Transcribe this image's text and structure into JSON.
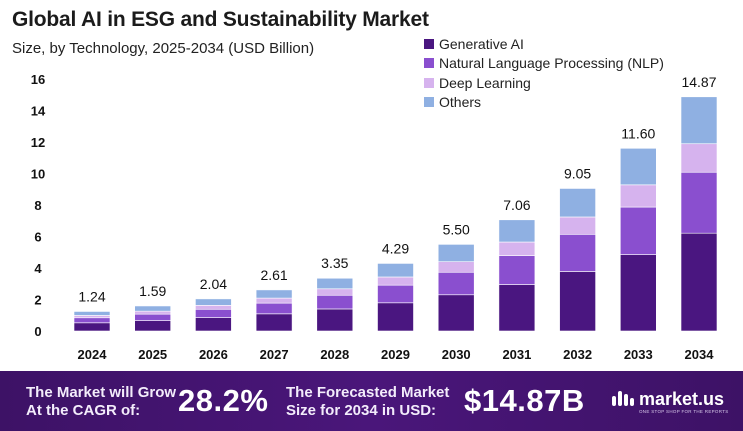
{
  "title": "Global AI in ESG and Sustainability Market",
  "subtitle": "Size, by Technology, 2025-2034 (USD Billion)",
  "colors": {
    "generative_ai": "#4a1680",
    "nlp": "#8a4fcf",
    "deep_learning": "#d6b3ee",
    "others": "#8fb0e2"
  },
  "legend": [
    {
      "label": "Generative AI",
      "color": "#4a1680"
    },
    {
      "label": "Natural Language Processing (NLP)",
      "color": "#8a4fcf"
    },
    {
      "label": "Deep Learning",
      "color": "#d6b3ee"
    },
    {
      "label": "Others",
      "color": "#8fb0e2"
    }
  ],
  "chart_data": {
    "type": "bar",
    "stacked": true,
    "categories": [
      "2024",
      "2025",
      "2026",
      "2027",
      "2028",
      "2029",
      "2030",
      "2031",
      "2032",
      "2033",
      "2034"
    ],
    "totals": [
      1.24,
      1.59,
      2.04,
      2.61,
      3.35,
      4.29,
      5.5,
      7.06,
      9.05,
      11.6,
      14.87
    ],
    "total_labels": [
      "1.24",
      "1.59",
      "2.04",
      "2.61",
      "3.35",
      "4.29",
      "5.50",
      "7.06",
      "9.05",
      "11.60",
      "14.87"
    ],
    "series": [
      {
        "name": "Generative AI",
        "color": "#4a1680",
        "values": [
          0.52,
          0.66,
          0.85,
          1.09,
          1.4,
          1.79,
          2.3,
          2.95,
          3.78,
          4.85,
          6.21
        ]
      },
      {
        "name": "Natural Language Processing (NLP)",
        "color": "#8a4fcf",
        "values": [
          0.32,
          0.41,
          0.53,
          0.68,
          0.87,
          1.12,
          1.43,
          1.84,
          2.36,
          3.02,
          3.87
        ]
      },
      {
        "name": "Deep Learning",
        "color": "#d6b3ee",
        "values": [
          0.15,
          0.19,
          0.25,
          0.32,
          0.41,
          0.52,
          0.67,
          0.86,
          1.1,
          1.41,
          1.81
        ]
      },
      {
        "name": "Others",
        "color": "#8fb0e2",
        "values": [
          0.25,
          0.33,
          0.41,
          0.52,
          0.67,
          0.86,
          1.1,
          1.41,
          1.81,
          2.32,
          2.98
        ]
      }
    ],
    "yticks": [
      "0",
      "2",
      "4",
      "6",
      "8",
      "10",
      "12",
      "14",
      "16"
    ],
    "ylim": [
      0,
      16
    ],
    "grid": false,
    "legend_position": "top-right"
  },
  "footer": {
    "cagr_label": "The Market will Grow\nAt the CAGR of:",
    "cagr_value": "28.2%",
    "forecast_label": "The Forecasted Market\nSize for 2034 in USD:",
    "forecast_value": "$14.87B",
    "brand_name": "market.us",
    "brand_tagline": "ONE STOP SHOP FOR THE REPORTS"
  }
}
